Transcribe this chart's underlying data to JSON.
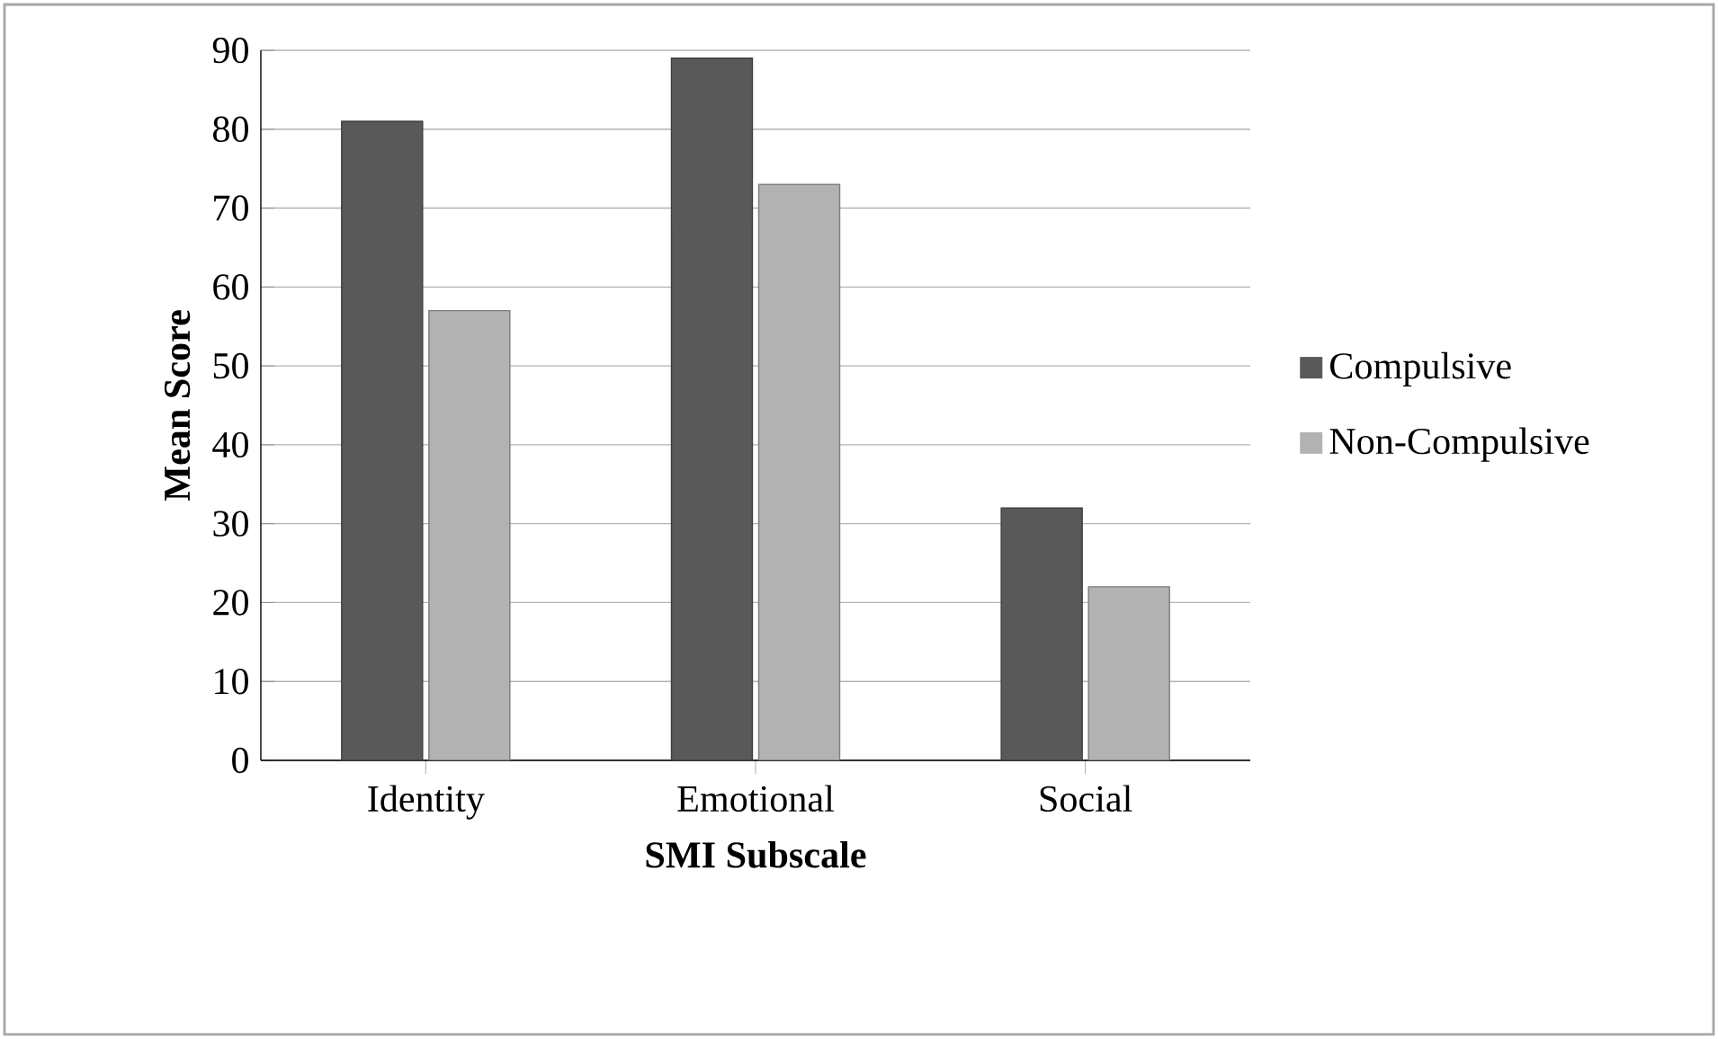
{
  "chart_data": {
    "type": "bar",
    "xlabel": "SMI Subscale",
    "ylabel": "Mean Score",
    "categories": [
      "Identity",
      "Emotional",
      "Social"
    ],
    "series": [
      {
        "name": "Compulsive",
        "color": "#595959",
        "values": [
          81,
          89,
          32
        ]
      },
      {
        "name": "Non-Compulsive",
        "color": "#b2b2b2",
        "values": [
          57,
          73,
          22
        ]
      }
    ],
    "ylim": [
      0,
      90
    ],
    "yticks": [
      0,
      10,
      20,
      30,
      40,
      50,
      60,
      70,
      80,
      90
    ],
    "grid": "y",
    "legend": "right"
  }
}
